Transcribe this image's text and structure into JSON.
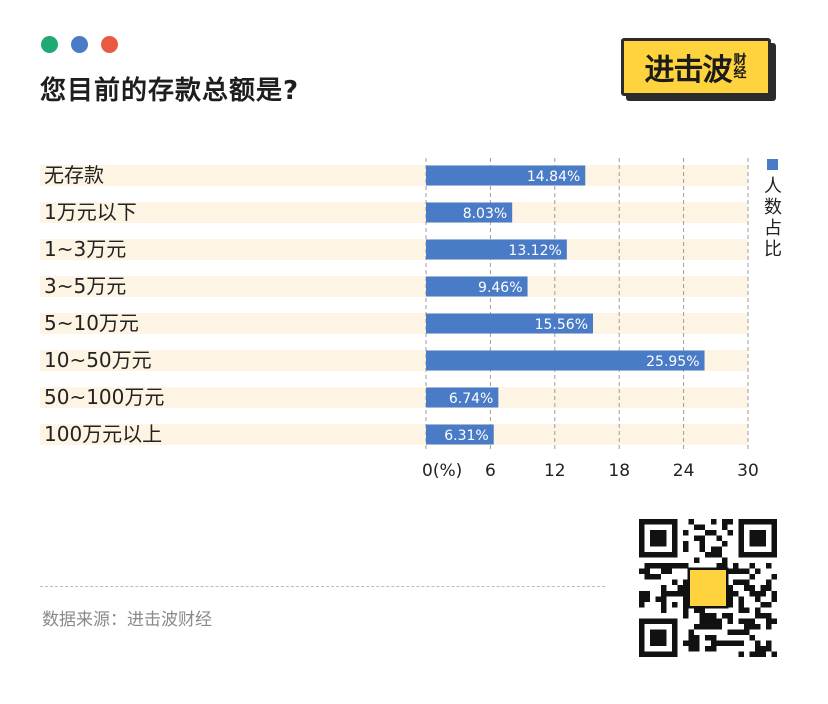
{
  "header": {
    "dots": [
      "#1faa74",
      "#4a7bc6",
      "#ea5a43"
    ],
    "title": "您目前的存款总额是?"
  },
  "logo": {
    "main": "进击波",
    "sub": "财经"
  },
  "chart_data": {
    "type": "bar",
    "orientation": "horizontal",
    "categories": [
      "无存款",
      "1万元以下",
      "1~3万元",
      "3~5万元",
      "5~10万元",
      "10~50万元",
      "50~100万元",
      "100万元以上"
    ],
    "series": [
      {
        "name": "人数占比",
        "values": [
          14.84,
          8.03,
          13.12,
          9.46,
          15.56,
          25.95,
          6.74,
          6.31
        ]
      }
    ],
    "data_labels": [
      "14.84%",
      "8.03%",
      "13.12%",
      "9.46%",
      "15.56%",
      "25.95%",
      "6.74%",
      "6.31%"
    ],
    "xlim": [
      0,
      30
    ],
    "xticks": [
      0,
      6,
      12,
      18,
      24,
      30
    ],
    "xtick_labels": [
      "0(%)",
      "6",
      "12",
      "18",
      "24",
      "30"
    ],
    "grid": "vertical dashed",
    "legend": "right",
    "bar_color": "#4a7bc6",
    "row_band_color": "#fdf4e3"
  },
  "footer": {
    "source": "数据来源：进击波财经"
  }
}
